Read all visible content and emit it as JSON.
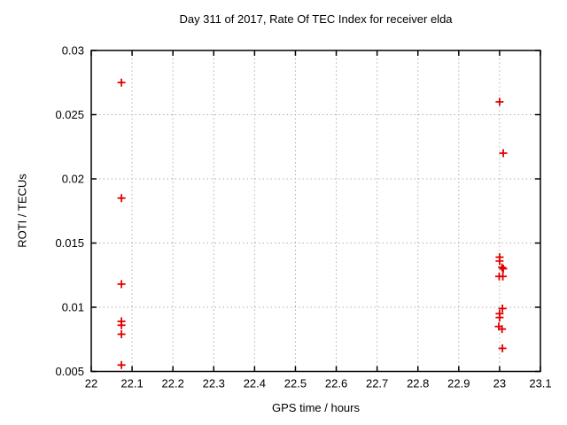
{
  "chart_data": {
    "type": "scatter",
    "title": "Day 311 of 2017, Rate Of TEC Index for receiver elda",
    "xlabel": "GPS time / hours",
    "ylabel": "ROTI / TECUs",
    "xlim": [
      22,
      23.1
    ],
    "ylim": [
      0.005,
      0.03
    ],
    "x_ticks": [
      22,
      22.1,
      22.2,
      22.3,
      22.4,
      22.5,
      22.6,
      22.7,
      22.8,
      22.9,
      23,
      23.1
    ],
    "x_tick_labels": [
      "22",
      "22.1",
      "22.2",
      "22.3",
      "22.4",
      "22.5",
      "22.6",
      "22.7",
      "22.8",
      "22.9",
      "23",
      "23.1"
    ],
    "y_ticks": [
      0.005,
      0.01,
      0.015,
      0.02,
      0.025,
      0.03
    ],
    "y_tick_labels": [
      "0.005",
      "0.01",
      "0.015",
      "0.02",
      "0.025",
      "0.03"
    ],
    "grid": true,
    "legend": "none",
    "marker": {
      "shape": "plus",
      "color": "#e00000",
      "half_size": 4.5
    },
    "series": [
      {
        "name": "ROTI",
        "points": [
          [
            22.074,
            0.0275
          ],
          [
            22.074,
            0.0185
          ],
          [
            22.074,
            0.0118
          ],
          [
            22.074,
            0.0089
          ],
          [
            22.074,
            0.0086
          ],
          [
            22.074,
            0.0079
          ],
          [
            22.074,
            0.0055
          ],
          [
            23.0,
            0.026
          ],
          [
            23.009,
            0.022
          ],
          [
            23.0,
            0.0139
          ],
          [
            23.0,
            0.0136
          ],
          [
            23.006,
            0.0131
          ],
          [
            23.009,
            0.013
          ],
          [
            22.999,
            0.0124
          ],
          [
            23.008,
            0.0124
          ],
          [
            23.007,
            0.0099
          ],
          [
            23.0,
            0.0095
          ],
          [
            23.0,
            0.0092
          ],
          [
            22.998,
            0.0085
          ],
          [
            23.006,
            0.0083
          ],
          [
            23.007,
            0.0068
          ]
        ]
      }
    ]
  }
}
